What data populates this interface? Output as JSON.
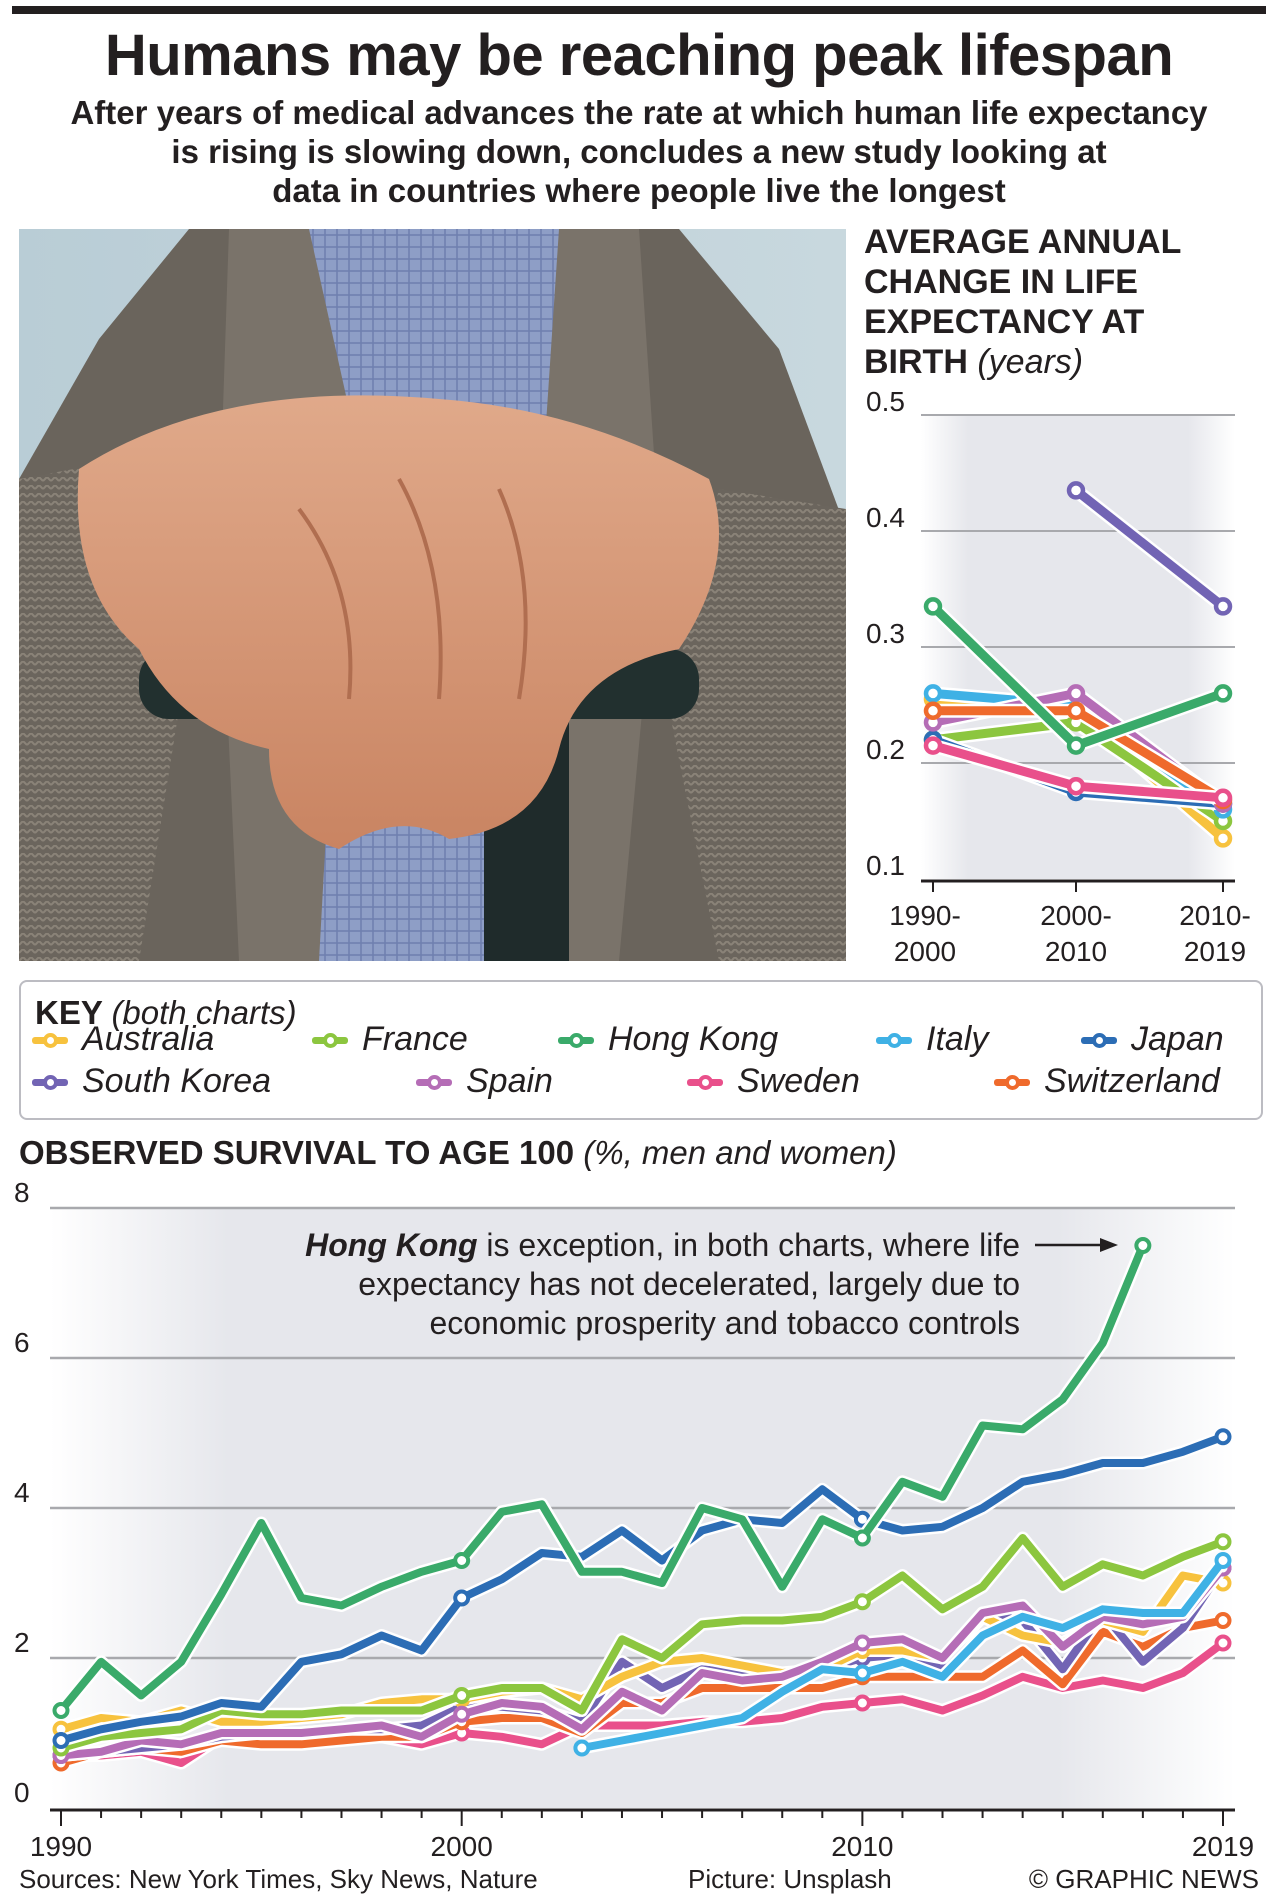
{
  "header": {
    "title": "Humans may be reaching peak lifespan",
    "subtitle_lines": [
      "After years of medical advances the rate at which human life expectancy",
      "is rising is slowing down, concludes a new study looking at",
      "data in countries where people live the longest"
    ]
  },
  "colors": {
    "Australia": "#f7c23e",
    "France": "#8cc63f",
    "Hong Kong": "#3aaa6a",
    "Italy": "#3fb1e5",
    "Japan": "#2c6db5",
    "South Korea": "#7264b4",
    "Spain": "#b56db6",
    "Sweden": "#e9508b",
    "Switzerland": "#ef6a2c"
  },
  "key": {
    "title": "KEY",
    "title_note": "(both charts)",
    "items": [
      "Australia",
      "France",
      "Hong Kong",
      "Italy",
      "Japan",
      "South Korea",
      "Spain",
      "Sweden",
      "Switzerland"
    ]
  },
  "chart_data": [
    {
      "type": "line",
      "title": "AVERAGE ANNUAL CHANGE IN LIFE EXPECTANCY AT BIRTH",
      "title_lines": [
        "AVERAGE ANNUAL",
        "CHANGE IN LIFE",
        "EXPECTANCY AT",
        "BIRTH"
      ],
      "unit": "(years)",
      "categories": [
        [
          "1990-",
          "2000"
        ],
        [
          "2000-",
          "2010"
        ],
        [
          "2010-",
          "2019"
        ]
      ],
      "ylim": [
        0.1,
        0.5
      ],
      "yticks": [
        "0.5",
        "0.4",
        "0.3",
        "0.2",
        "0.1"
      ],
      "grid": true,
      "series": [
        {
          "name": "Australia",
          "values": [
            0.255,
            0.245,
            0.135
          ]
        },
        {
          "name": "France",
          "values": [
            0.22,
            0.235,
            0.15
          ]
        },
        {
          "name": "Italy",
          "values": [
            0.26,
            0.25,
            0.16
          ]
        },
        {
          "name": "Japan",
          "values": [
            0.22,
            0.175,
            0.165
          ]
        },
        {
          "name": "Spain",
          "values": [
            0.235,
            0.26,
            0.165
          ]
        },
        {
          "name": "Switzerland",
          "values": [
            0.245,
            0.245,
            0.168
          ]
        },
        {
          "name": "Sweden",
          "values": [
            0.215,
            0.18,
            0.17
          ]
        },
        {
          "name": "Hong Kong",
          "values": [
            0.335,
            0.215,
            0.26
          ]
        },
        {
          "name": "South Korea",
          "values": [
            null,
            0.435,
            0.335
          ]
        }
      ]
    },
    {
      "type": "line",
      "title": "OBSERVED SURVIVAL TO AGE 100",
      "unit": "(%, men and women)",
      "x_start": 1990,
      "x_end": 2019,
      "xticks": [
        "1990",
        "2000",
        "2010",
        "2019"
      ],
      "ylim": [
        0,
        8
      ],
      "yticks": [
        "8",
        "6",
        "4",
        "2",
        "0"
      ],
      "grid": true,
      "annotation": {
        "bold": "Hong Kong",
        "lines": [
          " is exception, in both charts, where life",
          "expectancy has not decelerated, largely due to",
          "economic prosperity and tobacco controls"
        ]
      },
      "series": [
        {
          "name": "Sweden",
          "start": 1990,
          "values": [
            0.7,
            0.7,
            0.75,
            0.6,
            0.95,
            0.9,
            0.95,
            0.95,
            0.95,
            0.85,
            1.0,
            0.95,
            0.85,
            1.1,
            1.1,
            1.1,
            1.15,
            1.15,
            1.2,
            1.35,
            1.4,
            1.45,
            1.3,
            1.5,
            1.75,
            1.6,
            1.7,
            1.6,
            1.8,
            2.2
          ]
        },
        {
          "name": "Switzerland",
          "start": 1990,
          "values": [
            0.6,
            0.75,
            0.8,
            0.75,
            0.9,
            0.85,
            0.85,
            0.9,
            0.95,
            0.95,
            1.15,
            1.2,
            1.2,
            1.0,
            1.4,
            1.4,
            1.6,
            1.6,
            1.6,
            1.6,
            1.75,
            1.75,
            1.75,
            1.75,
            2.1,
            1.65,
            2.35,
            2.15,
            2.4,
            2.5
          ]
        },
        {
          "name": "South Korea",
          "start": 1990,
          "values": [
            0.7,
            0.75,
            0.8,
            0.85,
            0.95,
            1.0,
            1.0,
            1.05,
            1.05,
            1.1,
            1.35,
            1.35,
            1.3,
            1.15,
            1.95,
            1.6,
            1.85,
            1.8,
            1.75,
            1.85,
            2.0,
            2.05,
            1.85,
            2.6,
            2.5,
            1.85,
            2.6,
            1.95,
            2.4,
            3.2
          ]
        },
        {
          "name": "Australia",
          "start": 1990,
          "values": [
            1.05,
            1.2,
            1.15,
            1.3,
            1.15,
            1.15,
            1.2,
            1.25,
            1.4,
            1.45,
            1.45,
            1.55,
            1.6,
            1.45,
            1.75,
            1.95,
            2.0,
            1.9,
            1.8,
            1.85,
            2.1,
            2.1,
            2.0,
            2.55,
            2.3,
            2.2,
            2.5,
            2.35,
            3.1,
            3.0
          ]
        },
        {
          "name": "Spain",
          "start": 1990,
          "values": [
            0.7,
            0.75,
            0.9,
            0.85,
            1.0,
            1.0,
            1.0,
            1.05,
            1.1,
            0.95,
            1.25,
            1.4,
            1.35,
            1.05,
            1.55,
            1.3,
            1.8,
            1.7,
            1.75,
            1.95,
            2.2,
            2.25,
            2.0,
            2.6,
            2.7,
            2.15,
            2.55,
            2.45,
            2.55,
            3.2
          ]
        },
        {
          "name": "Italy",
          "start": 2003,
          "values": [
            0.8,
            0.9,
            1.0,
            1.1,
            1.2,
            1.55,
            1.85,
            1.8,
            1.95,
            1.75,
            2.3,
            2.55,
            2.4,
            2.65,
            2.6,
            2.6,
            3.3
          ]
        },
        {
          "name": "France",
          "start": 1990,
          "values": [
            0.8,
            0.95,
            1.0,
            1.05,
            1.3,
            1.25,
            1.25,
            1.3,
            1.3,
            1.3,
            1.5,
            1.6,
            1.6,
            1.3,
            2.25,
            2.0,
            2.45,
            2.5,
            2.5,
            2.55,
            2.75,
            3.1,
            2.65,
            2.95,
            3.6,
            2.95,
            3.25,
            3.1,
            3.35,
            3.55
          ]
        },
        {
          "name": "Japan",
          "start": 1990,
          "values": [
            0.9,
            1.05,
            1.15,
            1.22,
            1.4,
            1.35,
            1.95,
            2.05,
            2.3,
            2.1,
            2.8,
            3.05,
            3.4,
            3.35,
            3.7,
            3.3,
            3.7,
            3.85,
            3.8,
            4.25,
            3.85,
            3.7,
            3.75,
            4.0,
            4.35,
            4.45,
            4.6,
            4.6,
            4.75,
            4.95
          ]
        },
        {
          "name": "Hong Kong",
          "start": 1990,
          "values": [
            1.3,
            1.95,
            1.5,
            1.95,
            2.85,
            3.8,
            2.8,
            2.7,
            2.95,
            3.15,
            3.3,
            3.95,
            4.05,
            3.15,
            3.15,
            3.0,
            4.0,
            3.85,
            2.95,
            3.85,
            3.6,
            4.35,
            4.15,
            5.1,
            5.05,
            5.45,
            6.2,
            7.5
          ]
        }
      ]
    }
  ],
  "footer": {
    "sources": "Sources: New York Times, Sky News, Nature",
    "picture": "Picture: Unsplash",
    "credit": "© GRAPHIC NEWS"
  }
}
